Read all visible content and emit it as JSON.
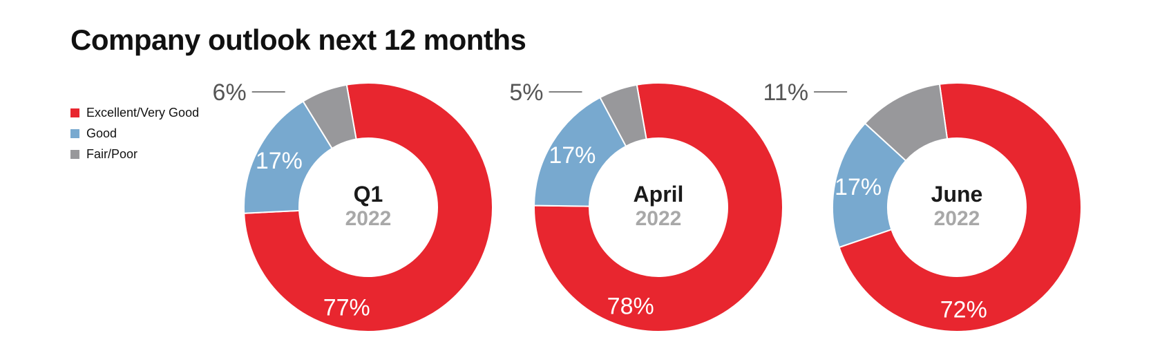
{
  "title": "Company outlook next 12 months",
  "colors": {
    "excellent": "#e8262f",
    "good": "#78a9cf",
    "fair": "#98989b"
  },
  "legend": [
    {
      "label": "Excellent/Very Good",
      "color": "#e8262f"
    },
    {
      "label": "Good",
      "color": "#78a9cf"
    },
    {
      "label": "Fair/Poor",
      "color": "#98989b"
    }
  ],
  "chart_data": [
    {
      "type": "pie",
      "variant": "donut",
      "center_label": "Q1",
      "center_sublabel": "2022",
      "slices": [
        {
          "category": "Excellent/Very Good",
          "value": 77,
          "label": "77%"
        },
        {
          "category": "Good",
          "value": 17,
          "label": "17%"
        },
        {
          "category": "Fair/Poor",
          "value": 6,
          "label": "6%"
        }
      ]
    },
    {
      "type": "pie",
      "variant": "donut",
      "center_label": "April",
      "center_sublabel": "2022",
      "slices": [
        {
          "category": "Excellent/Very Good",
          "value": 78,
          "label": "78%"
        },
        {
          "category": "Good",
          "value": 17,
          "label": "17%"
        },
        {
          "category": "Fair/Poor",
          "value": 5,
          "label": "5%"
        }
      ]
    },
    {
      "type": "pie",
      "variant": "donut",
      "center_label": "June",
      "center_sublabel": "2022",
      "slices": [
        {
          "category": "Excellent/Very Good",
          "value": 72,
          "label": "72%"
        },
        {
          "category": "Good",
          "value": 17,
          "label": "17%"
        },
        {
          "category": "Fair/Poor",
          "value": 11,
          "label": "11%"
        }
      ]
    }
  ]
}
